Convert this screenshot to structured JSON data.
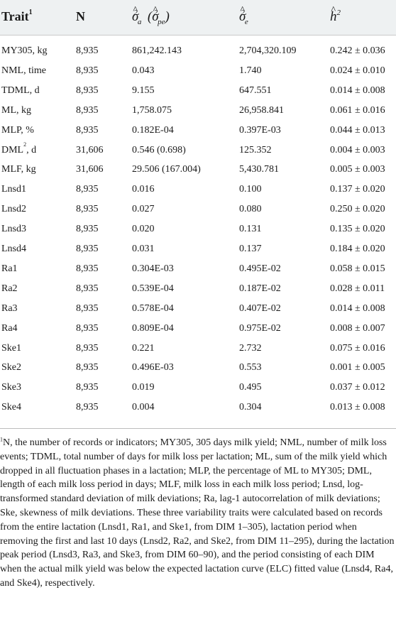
{
  "header": {
    "trait": "Trait",
    "trait_sup": "1",
    "n": "N",
    "genetic_var": "σ",
    "genetic_var_sub": "a",
    "perm_var": "σ",
    "perm_var_sub": "pe",
    "residual_var": "σ",
    "residual_var_sub": "e",
    "heritability": "h",
    "exp": "2"
  },
  "rows": [
    {
      "trait": "MY305, kg",
      "n": "8,935",
      "va": "861,242.143",
      "ve": "2,704,320.109",
      "h2": "0.242 ± 0.036"
    },
    {
      "trait": "NML, time",
      "n": "8,935",
      "va": "0.043",
      "ve": "1.740",
      "h2": "0.024 ± 0.010"
    },
    {
      "trait": "TDML, d",
      "n": "8,935",
      "va": "9.155",
      "ve": "647.551",
      "h2": "0.014 ± 0.008"
    },
    {
      "trait": "ML, kg",
      "n": "8,935",
      "va": "1,758.075",
      "ve": "26,958.841",
      "h2": "0.061 ± 0.016"
    },
    {
      "trait": "MLP, %",
      "n": "8,935",
      "va": "0.182E-04",
      "ve": "0.397E-03",
      "h2": "0.044 ± 0.013"
    },
    {
      "trait": "DML",
      "trait_sup": "2",
      "trait_unit": ", d",
      "n": "31,606",
      "va": "0.546 (0.698)",
      "ve": "125.352",
      "h2": "0.004 ± 0.003"
    },
    {
      "trait": "MLF, kg",
      "n": "31,606",
      "va": "29.506 (167.004)",
      "ve": "5,430.781",
      "h2": "0.005 ± 0.003"
    },
    {
      "trait": "Lnsd1",
      "n": "8,935",
      "va": "0.016",
      "ve": "0.100",
      "h2": "0.137 ± 0.020"
    },
    {
      "trait": "Lnsd2",
      "n": "8,935",
      "va": "0.027",
      "ve": "0.080",
      "h2": "0.250 ± 0.020"
    },
    {
      "trait": "Lnsd3",
      "n": "8,935",
      "va": "0.020",
      "ve": "0.131",
      "h2": "0.135 ± 0.020"
    },
    {
      "trait": "Lnsd4",
      "n": "8,935",
      "va": "0.031",
      "ve": "0.137",
      "h2": "0.184 ± 0.020"
    },
    {
      "trait": "Ra1",
      "n": "8,935",
      "va": "0.304E-03",
      "ve": "0.495E-02",
      "h2": "0.058 ± 0.015"
    },
    {
      "trait": "Ra2",
      "n": "8,935",
      "va": "0.539E-04",
      "ve": "0.187E-02",
      "h2": "0.028 ± 0.011"
    },
    {
      "trait": "Ra3",
      "n": "8,935",
      "va": "0.578E-04",
      "ve": "0.407E-02",
      "h2": "0.014 ± 0.008"
    },
    {
      "trait": "Ra4",
      "n": "8,935",
      "va": "0.809E-04",
      "ve": "0.975E-02",
      "h2": "0.008 ± 0.007"
    },
    {
      "trait": "Ske1",
      "n": "8,935",
      "va": "0.221",
      "ve": "2.732",
      "h2": "0.075 ± 0.016"
    },
    {
      "trait": "Ske2",
      "n": "8,935",
      "va": "0.496E-03",
      "ve": "0.553",
      "h2": "0.001 ± 0.005"
    },
    {
      "trait": "Ske3",
      "n": "8,935",
      "va": "0.019",
      "ve": "0.495",
      "h2": "0.037 ± 0.012"
    },
    {
      "trait": "Ske4",
      "n": "8,935",
      "va": "0.004",
      "ve": "0.304",
      "h2": "0.013 ± 0.008"
    }
  ],
  "footnote": {
    "marker": "1",
    "text": "N, the number of records or indicators; MY305, 305 days milk yield; NML, number of milk loss events; TDML, total number of days for milk loss per lactation; ML, sum of the milk yield which dropped in all fluctuation phases in a lactation; MLP, the percentage of ML to MY305; DML, length of each milk loss period in days; MLF, milk loss in each milk loss period; Lnsd, log-transformed standard deviation of milk deviations; Ra, lag-1 autocorrelation of milk deviations; Ske, skewness of milk deviations. These three variability traits were calculated based on records from the entire lactation (Lnsd1, Ra1, and Ske1, from DIM 1–305), lactation period when removing the first and last 10 days (Lnsd2, Ra2, and Ske2, from DIM 11–295), during the lactation peak period (Lnsd3, Ra3, and Ske3, from DIM 60–90), and the period consisting of each DIM when the actual milk yield was below the expected lactation curve (ELC) fitted value (Lnsd4, Ra4, and Ske4), respectively."
  }
}
